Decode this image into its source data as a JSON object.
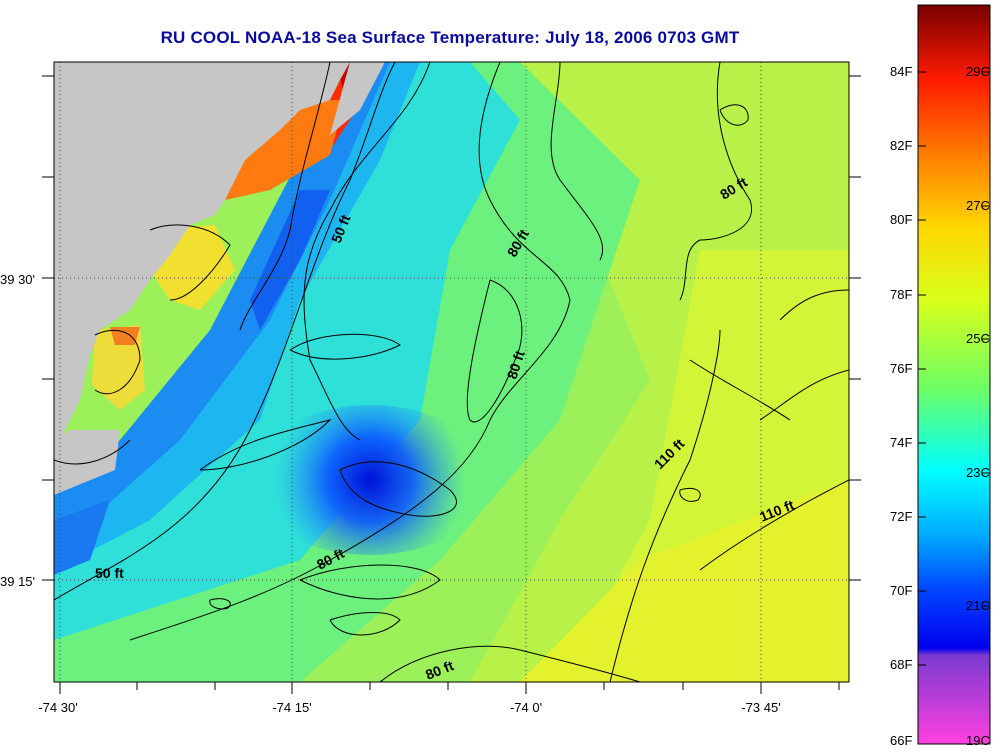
{
  "title": "RU COOL  NOAA-18  Sea Surface Temperature:  July 18, 2006 0703 GMT",
  "x_axis_labels": [
    "-74 30'",
    "-74 15'",
    "-74 0'",
    "-73 45'"
  ],
  "y_axis_labels": [
    "39 30'",
    "39 15'"
  ],
  "colorbar": {
    "fahrenheit_labels": [
      "84F",
      "82F",
      "80F",
      "78F",
      "76F",
      "74F",
      "72F",
      "70F",
      "68F",
      "66F"
    ],
    "celsius_labels": [
      "29C",
      "27C",
      "25C",
      "23C",
      "21C",
      "19C"
    ]
  },
  "contour_labels": [
    "50 ft",
    "50 ft",
    "80 ft",
    "80 ft",
    "80 ft",
    "80 ft",
    "80 ft",
    "110 ft",
    "110 ft"
  ],
  "colors": {
    "land": "#c6c6c6",
    "title": "#0a0aa0",
    "warm_max": "#8b0000",
    "cold_min": "#ff33cc"
  }
}
